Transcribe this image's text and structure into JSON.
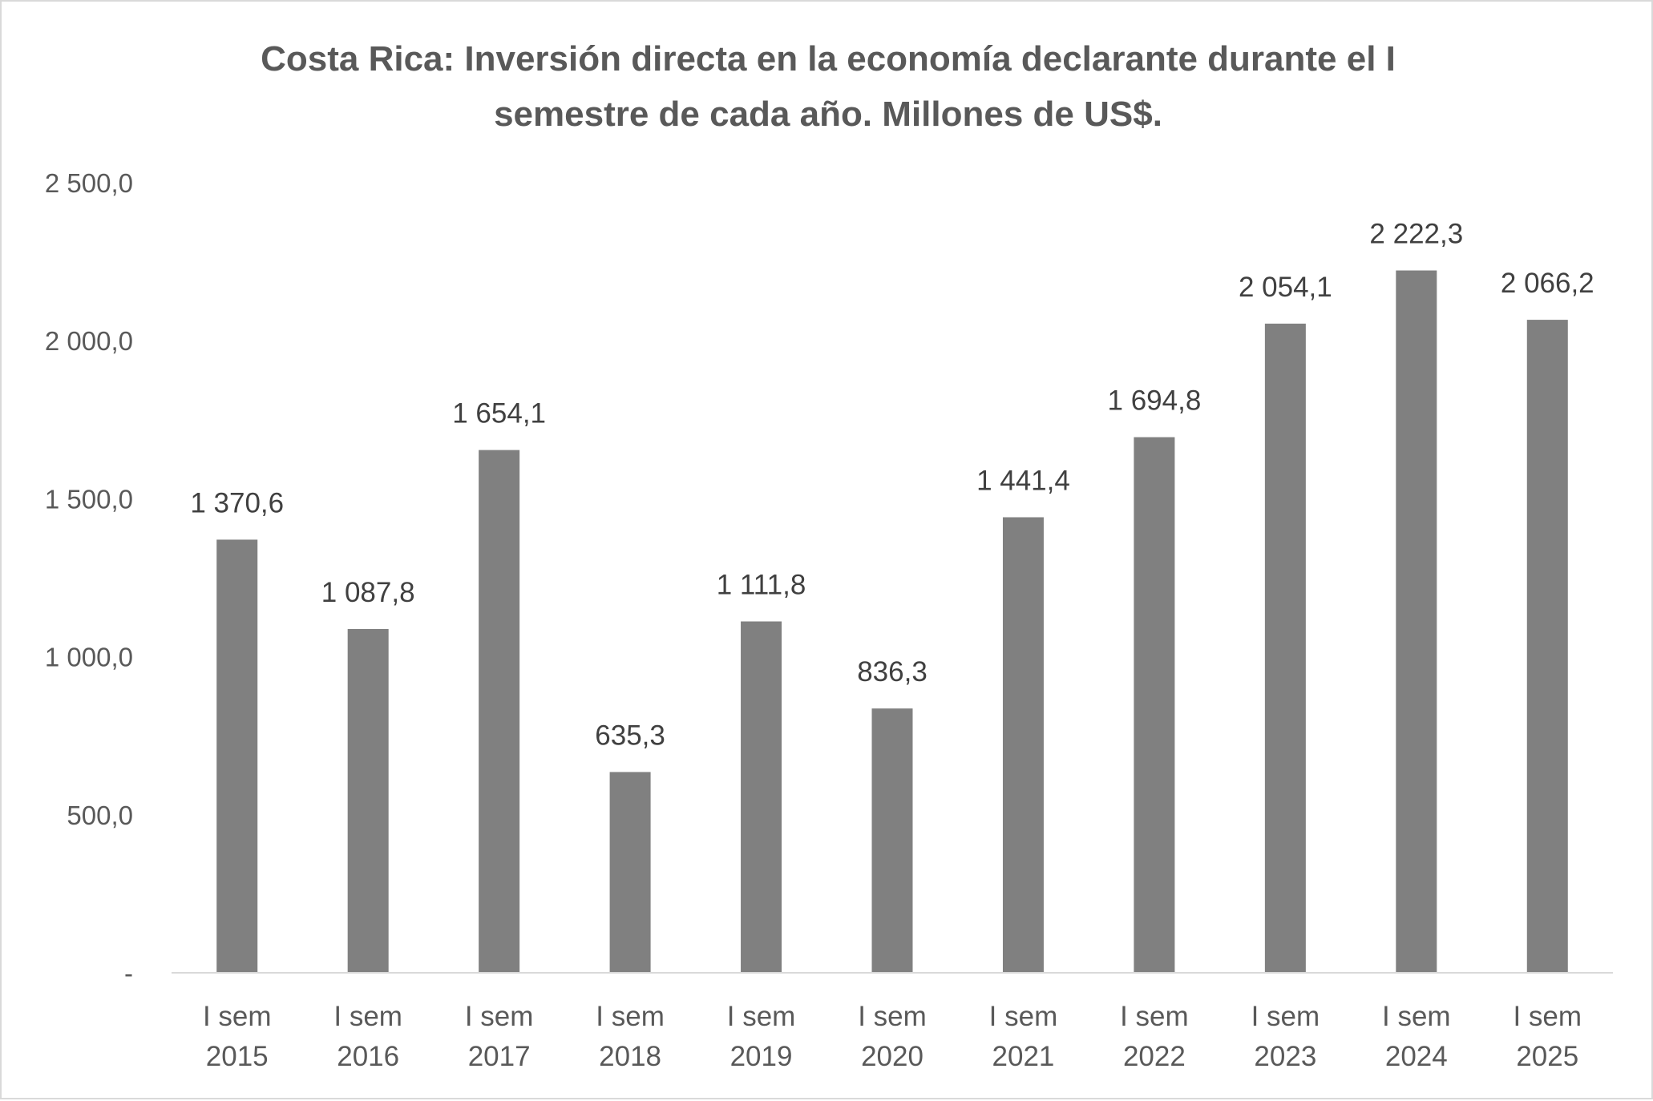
{
  "chart_data": {
    "type": "bar",
    "title_lines": [
      "Costa Rica: Inversión directa en la economía declarante durante el I",
      "semestre de cada año. Millones de US$."
    ],
    "categories": [
      [
        "I sem",
        "2015"
      ],
      [
        "I sem",
        "2016"
      ],
      [
        "I sem",
        "2017"
      ],
      [
        "I sem",
        "2018"
      ],
      [
        "I sem",
        "2019"
      ],
      [
        "I sem",
        "2020"
      ],
      [
        "I sem",
        "2021"
      ],
      [
        "I sem",
        "2022"
      ],
      [
        "I sem",
        "2023"
      ],
      [
        "I sem",
        "2024"
      ],
      [
        "I sem",
        "2025"
      ]
    ],
    "values": [
      1370.6,
      1087.8,
      1654.1,
      635.3,
      1111.8,
      836.3,
      1441.4,
      1694.8,
      2054.1,
      2222.3,
      2066.2
    ],
    "data_labels": [
      "1 370,6",
      "1 087,8",
      "1 654,1",
      "635,3",
      "1 111,8",
      "836,3",
      "1 441,4",
      "1 694,8",
      "2 054,1",
      "2 222,3",
      "2 066,2"
    ],
    "ylim": [
      0,
      2500
    ],
    "yticks": [
      {
        "value": 0,
        "label": "-"
      },
      {
        "value": 500,
        "label": "500,0"
      },
      {
        "value": 1000,
        "label": "1 000,0"
      },
      {
        "value": 1500,
        "label": "1 500,0"
      },
      {
        "value": 2000,
        "label": "2 000,0"
      },
      {
        "value": 2500,
        "label": "2 500,0"
      }
    ],
    "grid": false,
    "legend": "none",
    "bar_color": "#808080",
    "axis_color": "#d9d9d9",
    "text_color": "#595959"
  }
}
